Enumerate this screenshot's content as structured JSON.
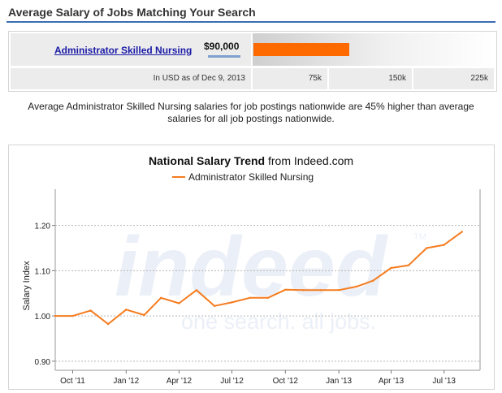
{
  "header": {
    "title": "Average Salary of Jobs Matching Your Search"
  },
  "salary_summary": {
    "job_title": "Administrator Skilled Nursing",
    "amount_label": "$90,000",
    "amount_value": 90000,
    "scale_max": 250000,
    "date_note": "In USD as of Dec 9, 2013",
    "scale_labels": [
      "75k",
      "150k",
      "225k"
    ]
  },
  "summary_text": "Average Administrator Skilled Nursing salaries for job postings nationwide are 45% higher than average salaries for all job postings nationwide.",
  "watermark": {
    "logo_text": "indeed",
    "tm": "TM",
    "tagline": "one search. all jobs."
  },
  "chart_data": {
    "type": "line",
    "title_bold": "National Salary Trend",
    "title_rest": " from Indeed.com",
    "ylabel": "Salary Index",
    "xlabel": "",
    "ylim": [
      0.88,
      1.28
    ],
    "yticks": [
      0.9,
      1.0,
      1.1,
      1.2
    ],
    "ytick_labels": [
      "0.90",
      "1.00",
      "1.10",
      "1.20"
    ],
    "xlim": [
      "2011-09-01",
      "2013-09-01"
    ],
    "xticks": [
      "2011-10-01",
      "2012-01-01",
      "2012-04-01",
      "2012-07-01",
      "2012-10-01",
      "2013-01-01",
      "2013-04-01",
      "2013-07-01"
    ],
    "xtick_labels": [
      "Oct '11",
      "Jan '12",
      "Apr '12",
      "Jul '12",
      "Oct '12",
      "Jan '13",
      "Apr '13",
      "Jul '13"
    ],
    "grid": true,
    "legend_position": "top",
    "series": [
      {
        "name": "Administrator Skilled Nursing",
        "color": "#f57c1f",
        "points": [
          {
            "x": "2011-09-01",
            "y": 1.0
          },
          {
            "x": "2011-10-01",
            "y": 1.0
          },
          {
            "x": "2011-11-01",
            "y": 1.012
          },
          {
            "x": "2011-12-01",
            "y": 0.982
          },
          {
            "x": "2012-01-01",
            "y": 1.014
          },
          {
            "x": "2012-02-01",
            "y": 1.002
          },
          {
            "x": "2012-03-01",
            "y": 1.04
          },
          {
            "x": "2012-04-01",
            "y": 1.028
          },
          {
            "x": "2012-05-01",
            "y": 1.057
          },
          {
            "x": "2012-06-01",
            "y": 1.022
          },
          {
            "x": "2012-07-01",
            "y": 1.03
          },
          {
            "x": "2012-08-01",
            "y": 1.04
          },
          {
            "x": "2012-09-01",
            "y": 1.04
          },
          {
            "x": "2012-10-01",
            "y": 1.058
          },
          {
            "x": "2012-11-01",
            "y": 1.057
          },
          {
            "x": "2012-12-01",
            "y": 1.057
          },
          {
            "x": "2013-01-01",
            "y": 1.057
          },
          {
            "x": "2013-02-01",
            "y": 1.065
          },
          {
            "x": "2013-03-01",
            "y": 1.078
          },
          {
            "x": "2013-04-01",
            "y": 1.106
          },
          {
            "x": "2013-05-01",
            "y": 1.112
          },
          {
            "x": "2013-06-01",
            "y": 1.15
          },
          {
            "x": "2013-07-01",
            "y": 1.157
          },
          {
            "x": "2013-08-01",
            "y": 1.186
          }
        ]
      }
    ]
  }
}
